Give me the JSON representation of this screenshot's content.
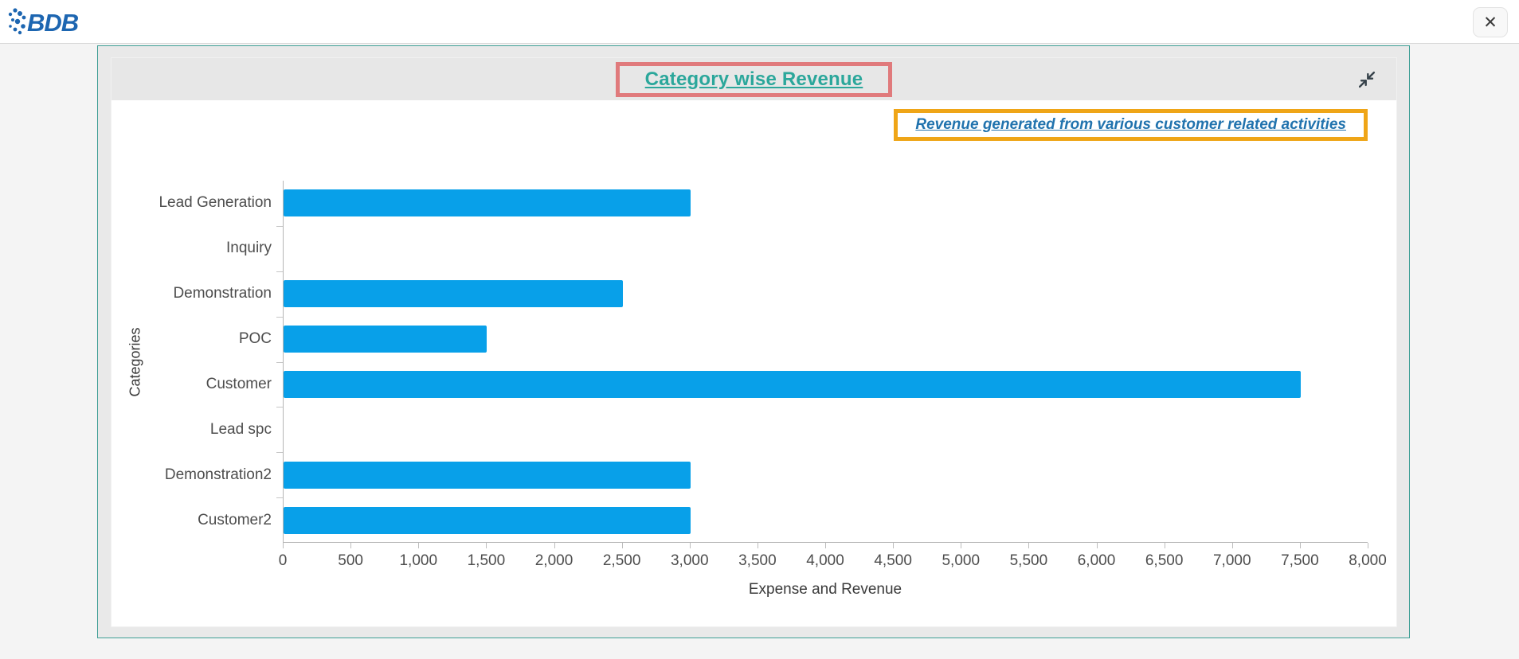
{
  "topbar": {
    "logo_text": "BDB",
    "close_label": "✕"
  },
  "panel": {
    "title": "Category wise Revenue",
    "subtitle": "Revenue generated from various customer related activities",
    "collapse_icon": "collapse-arrows"
  },
  "chart_data": {
    "type": "bar",
    "orientation": "horizontal",
    "title": "Category wise Revenue",
    "subtitle": "Revenue generated from various customer related activities",
    "categories": [
      "Lead Generation",
      "Inquiry",
      "Demonstration",
      "POC",
      "Customer",
      "Lead spc",
      "Demonstration2",
      "Customer2"
    ],
    "values": [
      3000,
      0,
      2500,
      1500,
      7500,
      0,
      3000,
      3000
    ],
    "xlabel": "Expense and Revenue",
    "ylabel": "Categories",
    "xlim": [
      0,
      8000
    ],
    "x_tick_step": 500,
    "x_tick_labels": [
      "0",
      "500",
      "1,000",
      "1,500",
      "2,000",
      "2,500",
      "3,000",
      "3,500",
      "4,000",
      "4,500",
      "5,000",
      "5,500",
      "6,000",
      "6,500",
      "7,000",
      "7,500",
      "8,000"
    ],
    "grid": false,
    "legend": false,
    "bar_color": "#08a0e9"
  },
  "colors": {
    "bar": "#08a0e9",
    "title_text": "#2ba79b",
    "title_box_border": "#e07a7c",
    "subtitle_text": "#2173ae",
    "subtitle_box_border": "#efa517",
    "panel_border": "#3f9e95",
    "panel_background": "#e9e9e9",
    "header_background": "#e7e7e7",
    "logo_blue": "#1d66b1"
  }
}
